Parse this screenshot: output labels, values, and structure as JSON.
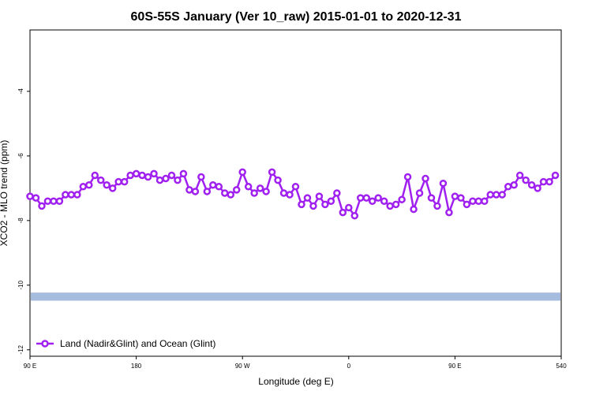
{
  "chart_data": {
    "type": "line",
    "title": "60S-55S January (Ver 10_raw)   2015-01-01 to 2020-12-31",
    "x_label": "Longitude (deg E)",
    "y_label": "XCO2 - MLO trend (ppm)",
    "xlim": [
      90,
      540
    ],
    "ylim": [
      -12.2,
      -2.1
    ],
    "xticks": [
      {
        "value": 90,
        "label": "90 E"
      },
      180,
      {
        "value": 270,
        "label": "90 W"
      },
      {
        "value": 360,
        "label": "0"
      },
      {
        "value": 450,
        "label": "90 E"
      },
      540
    ],
    "yticks": [
      -12,
      -10,
      -8,
      -6,
      -4
    ],
    "band": [
      -10.48,
      -10.23
    ],
    "band_color": "#a6bcdf",
    "legend": "bottom-left",
    "x": [
      90,
      95,
      100,
      105,
      110,
      115,
      120,
      125,
      130,
      135,
      140,
      145,
      150,
      155,
      160,
      165,
      170,
      175,
      180,
      185,
      190,
      195,
      200,
      205,
      210,
      215,
      220,
      225,
      230,
      235,
      240,
      245,
      250,
      255,
      260,
      265,
      270,
      275,
      280,
      285,
      290,
      295,
      300,
      305,
      310,
      315,
      320,
      325,
      330,
      335,
      340,
      345,
      350,
      355,
      360,
      365,
      370,
      375,
      380,
      385,
      390,
      395,
      400,
      405,
      410,
      415,
      420,
      425,
      430,
      435,
      440,
      445,
      450,
      455,
      460,
      465,
      470,
      475,
      480,
      485,
      490,
      495,
      500,
      505,
      510,
      515,
      520,
      525,
      530,
      535
    ],
    "series": [
      {
        "name": "Land (Nadir&Glint) and Ocean (Glint)",
        "color": "#a020f0",
        "values": [
          -7.25,
          -7.3,
          -7.55,
          -7.4,
          -7.4,
          -7.4,
          -7.2,
          -7.2,
          -7.2,
          -6.95,
          -6.9,
          -6.6,
          -6.75,
          -6.9,
          -7.0,
          -6.8,
          -6.8,
          -6.6,
          -6.55,
          -6.6,
          -6.65,
          -6.55,
          -6.75,
          -6.7,
          -6.6,
          -6.75,
          -6.55,
          -7.05,
          -7.1,
          -6.65,
          -7.1,
          -6.9,
          -6.95,
          -7.15,
          -7.2,
          -7.05,
          -6.5,
          -6.95,
          -7.15,
          -7.0,
          -7.1,
          -6.5,
          -6.75,
          -7.15,
          -7.2,
          -6.95,
          -7.5,
          -7.3,
          -7.55,
          -7.25,
          -7.5,
          -7.4,
          -7.15,
          -7.75,
          -7.6,
          -7.85,
          -7.3,
          -7.3,
          -7.4,
          -7.3,
          -7.4,
          -7.55,
          -7.5,
          -7.35,
          -6.65,
          -7.65,
          -7.15,
          -6.7,
          -7.3,
          -7.55,
          -6.85,
          -7.75,
          -7.25,
          -7.3,
          -7.5,
          -7.4,
          -7.4,
          -7.4,
          -7.2,
          -7.2,
          -7.2,
          -6.95,
          -6.9,
          -6.6,
          -6.75,
          -6.9,
          -7.0,
          -6.8,
          -6.8,
          -6.6
        ]
      }
    ]
  }
}
